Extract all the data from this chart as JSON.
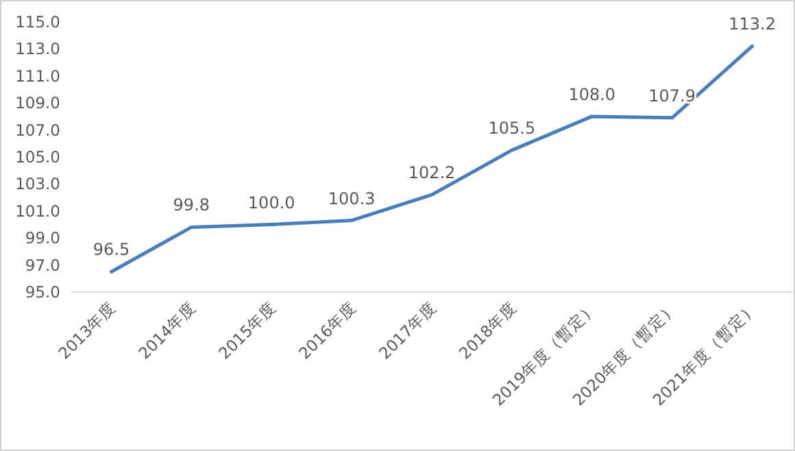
{
  "chart_data": {
    "type": "line",
    "categories": [
      "2013年度",
      "2014年度",
      "2015年度",
      "2016年度",
      "2017年度",
      "2018年度",
      "2019年度（暫定）",
      "2020年度（暫定）",
      "2021年度（暫定）"
    ],
    "series": [
      {
        "color": "#4a7ebb",
        "values": [
          96.5,
          99.8,
          100.0,
          100.3,
          102.2,
          105.5,
          108.0,
          107.9,
          113.2
        ],
        "value_labels": [
          "96.5",
          "99.8",
          "100.0",
          "100.3",
          "102.2",
          "105.5",
          "108.0",
          "107.9",
          "113.2"
        ]
      }
    ],
    "ylim": [
      95,
      115
    ],
    "yticks": [
      {
        "value": 95,
        "label": "95.0"
      },
      {
        "value": 97,
        "label": "97.0"
      },
      {
        "value": 99,
        "label": "99.0"
      },
      {
        "value": 101,
        "label": "101.0"
      },
      {
        "value": 103,
        "label": "103.0"
      },
      {
        "value": 105,
        "label": "105.0"
      },
      {
        "value": 107,
        "label": "107.0"
      },
      {
        "value": 109,
        "label": "109.0"
      },
      {
        "value": 111,
        "label": "111.0"
      },
      {
        "value": 113,
        "label": "113.0"
      },
      {
        "value": 115,
        "label": "115.0"
      }
    ],
    "marker": "none",
    "line_style": "solid"
  }
}
